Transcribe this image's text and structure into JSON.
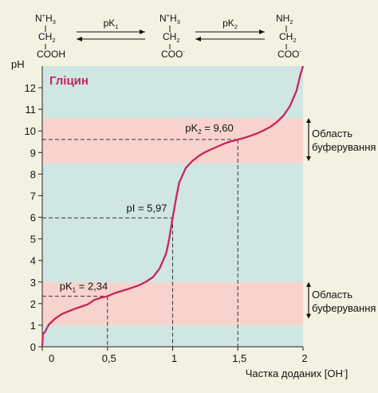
{
  "equilibrium": {
    "forms": [
      {
        "amino_charge": "+",
        "amino_label": "N",
        "amino_sub": "H",
        "amino_count": "3",
        "backbone_label": "CH",
        "backbone_count": "2",
        "carboxyl_label": "COOH",
        "carboxyl_charge": ""
      },
      {
        "amino_charge": "+",
        "amino_label": "N",
        "amino_sub": "H",
        "amino_count": "3",
        "backbone_label": "CH",
        "backbone_count": "2",
        "carboxyl_label": "COO",
        "carboxyl_charge": "-"
      },
      {
        "amino_charge": "",
        "amino_label": "N",
        "amino_sub": "H",
        "amino_count": "2",
        "backbone_label": "CH",
        "backbone_count": "2",
        "carboxyl_label": "COO",
        "carboxyl_charge": "-"
      }
    ],
    "arrows": [
      {
        "label": "pK",
        "sub": "1"
      },
      {
        "label": "pK",
        "sub": "2"
      }
    ]
  },
  "chart_data": {
    "type": "line",
    "title": "Гліцин",
    "xlabel": "Частка доданих [OH",
    "xlabel_sup": "-",
    "xlabel_close": "]",
    "ylabel": "pH",
    "xlim": [
      0,
      2
    ],
    "ylim": [
      0,
      13
    ],
    "x_ticks": [
      0,
      0.5,
      1,
      1.5,
      2
    ],
    "x_tick_labels": [
      "0",
      "0,5",
      "1",
      "1,5",
      "2"
    ],
    "y_ticks": [
      0,
      1,
      2,
      3,
      4,
      5,
      6,
      7,
      8,
      9,
      10,
      11,
      12
    ],
    "y_tick_labels": [
      "0",
      "1",
      "2",
      "3",
      "4",
      "5",
      "6",
      "7",
      "8",
      "9",
      "10",
      "11",
      "12"
    ],
    "series": [
      {
        "color": "#c8245a",
        "points": [
          [
            0.0,
            0.0
          ],
          [
            0.005,
            0.6
          ],
          [
            0.02,
            0.68
          ],
          [
            0.05,
            1.03
          ],
          [
            0.1,
            1.31
          ],
          [
            0.15,
            1.51
          ],
          [
            0.2,
            1.64
          ],
          [
            0.25,
            1.76
          ],
          [
            0.3,
            1.86
          ],
          [
            0.35,
            1.97
          ],
          [
            0.4,
            2.17
          ],
          [
            0.45,
            2.27
          ],
          [
            0.5,
            2.34
          ],
          [
            0.55,
            2.47
          ],
          [
            0.6,
            2.57
          ],
          [
            0.65,
            2.66
          ],
          [
            0.7,
            2.76
          ],
          [
            0.75,
            2.87
          ],
          [
            0.8,
            3.03
          ],
          [
            0.85,
            3.23
          ],
          [
            0.9,
            3.63
          ],
          [
            0.95,
            4.32
          ],
          [
            0.97,
            4.88
          ],
          [
            1.0,
            5.97
          ],
          [
            1.03,
            7.0
          ],
          [
            1.05,
            7.6
          ],
          [
            1.1,
            8.28
          ],
          [
            1.15,
            8.6
          ],
          [
            1.2,
            8.84
          ],
          [
            1.25,
            9.02
          ],
          [
            1.3,
            9.16
          ],
          [
            1.35,
            9.29
          ],
          [
            1.4,
            9.42
          ],
          [
            1.45,
            9.52
          ],
          [
            1.5,
            9.6
          ],
          [
            1.55,
            9.68
          ],
          [
            1.6,
            9.78
          ],
          [
            1.65,
            9.89
          ],
          [
            1.7,
            10.03
          ],
          [
            1.75,
            10.19
          ],
          [
            1.8,
            10.41
          ],
          [
            1.85,
            10.71
          ],
          [
            1.9,
            11.15
          ],
          [
            1.95,
            11.86
          ],
          [
            1.98,
            12.6
          ],
          [
            2.0,
            13.0
          ]
        ]
      }
    ],
    "bands": [
      {
        "from": 0,
        "to": 1,
        "color": "#cfe6e3"
      },
      {
        "from": 1,
        "to": 3,
        "color": "#f8d3cd"
      },
      {
        "from": 3,
        "to": 8.5,
        "color": "#cfe6e3"
      },
      {
        "from": 8.5,
        "to": 10.6,
        "color": "#f8d3cd"
      },
      {
        "from": 10.6,
        "to": 13,
        "color": "#cfe6e3"
      }
    ],
    "annotations": [
      {
        "label": "pK",
        "sub": "1",
        "value": "= 2,34",
        "x": 0.5,
        "y": 2.34
      },
      {
        "label": "pI",
        "sub": "",
        "value": "= 5,97",
        "x": 1.0,
        "y": 5.97
      },
      {
        "label": "pK",
        "sub": "2",
        "value": "= 9,60",
        "x": 1.5,
        "y": 9.6
      }
    ],
    "buffer_regions": [
      {
        "from": 1.3,
        "to": 3.0,
        "line1": "Область",
        "line2": "буферування"
      },
      {
        "from": 8.6,
        "to": 10.6,
        "line1": "Область",
        "line2": "буферування"
      }
    ]
  }
}
